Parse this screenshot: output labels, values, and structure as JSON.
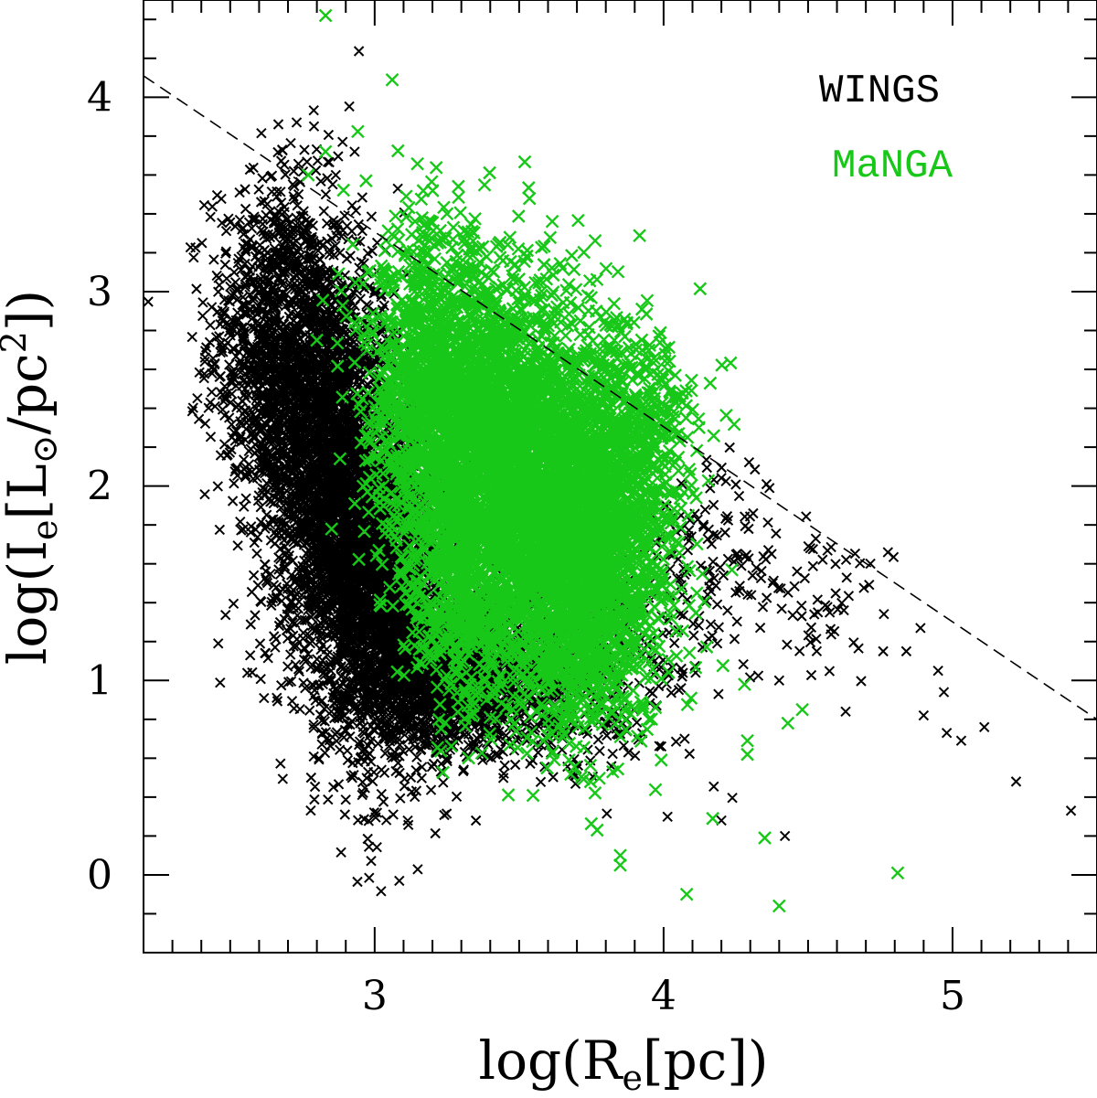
{
  "chart_data": {
    "type": "scatter",
    "title": "",
    "xlabel": "log(R_e[pc])",
    "ylabel": "log(I_e[L_sun/pc^2])",
    "xlim": [
      2.2,
      5.5
    ],
    "ylim": [
      -0.4,
      4.5
    ],
    "x_ticks": [
      3,
      4,
      5
    ],
    "x_tick_labels": [
      "3",
      "4",
      "5"
    ],
    "y_ticks": [
      0,
      1,
      2,
      3,
      4
    ],
    "y_tick_labels": [
      "0",
      "1",
      "2",
      "3",
      "4"
    ],
    "x_minor_step": 0.1,
    "y_minor_step": 0.2,
    "grid": false,
    "legend_position": "top-right",
    "series": [
      {
        "name": "WINGS",
        "color": "#000000",
        "marker": "x",
        "bulk_density": [
          {
            "x": 2.62,
            "y": 2.75,
            "sx": 0.1,
            "sy": 0.42,
            "n": 700
          },
          {
            "x": 2.78,
            "y": 2.35,
            "sx": 0.1,
            "sy": 0.55,
            "n": 1600
          },
          {
            "x": 2.92,
            "y": 1.85,
            "sx": 0.1,
            "sy": 0.55,
            "n": 1800
          },
          {
            "x": 3.05,
            "y": 1.4,
            "sx": 0.1,
            "sy": 0.4,
            "n": 1500
          },
          {
            "x": 3.25,
            "y": 1.05,
            "sx": 0.12,
            "sy": 0.2,
            "n": 1200
          },
          {
            "x": 3.5,
            "y": 1.0,
            "sx": 0.16,
            "sy": 0.22,
            "n": 500
          },
          {
            "x": 3.8,
            "y": 1.15,
            "sx": 0.18,
            "sy": 0.3,
            "n": 250
          },
          {
            "x": 4.2,
            "y": 1.65,
            "sx": 0.12,
            "sy": 0.25,
            "n": 120
          },
          {
            "x": 4.55,
            "y": 1.35,
            "sx": 0.12,
            "sy": 0.22,
            "n": 60
          }
        ],
        "outliers": [
          {
            "x": 2.73,
            "y": 3.87
          },
          {
            "x": 2.79,
            "y": 3.85
          },
          {
            "x": 2.68,
            "y": 3.73
          },
          {
            "x": 2.72,
            "y": 3.62
          },
          {
            "x": 3.08,
            "y": 3.53
          },
          {
            "x": 2.78,
            "y": 0.5
          },
          {
            "x": 3.03,
            "y": 0.74
          },
          {
            "x": 4.42,
            "y": 0.2
          },
          {
            "x": 5.22,
            "y": 0.48
          },
          {
            "x": 5.41,
            "y": 0.33
          },
          {
            "x": 4.9,
            "y": 0.82
          },
          {
            "x": 4.98,
            "y": 0.73
          },
          {
            "x": 5.03,
            "y": 0.69
          },
          {
            "x": 5.11,
            "y": 0.76
          },
          {
            "x": 4.95,
            "y": 1.05
          },
          {
            "x": 4.97,
            "y": 0.94
          },
          {
            "x": 4.84,
            "y": 1.15
          },
          {
            "x": 4.76,
            "y": 1.15
          },
          {
            "x": 4.63,
            "y": 0.84
          },
          {
            "x": 4.4,
            "y": 1.0
          },
          {
            "x": 4.2,
            "y": 0.28
          }
        ]
      },
      {
        "name": "MaNGA",
        "color": "#18c818",
        "marker": "x",
        "bulk_density": [
          {
            "x": 3.2,
            "y": 2.55,
            "sx": 0.12,
            "sy": 0.4,
            "n": 1000
          },
          {
            "x": 3.4,
            "y": 2.2,
            "sx": 0.15,
            "sy": 0.45,
            "n": 1800
          },
          {
            "x": 3.6,
            "y": 1.9,
            "sx": 0.15,
            "sy": 0.45,
            "n": 1800
          },
          {
            "x": 3.8,
            "y": 1.7,
            "sx": 0.13,
            "sy": 0.42,
            "n": 1200
          },
          {
            "x": 3.3,
            "y": 1.5,
            "sx": 0.1,
            "sy": 0.3,
            "n": 500
          },
          {
            "x": 3.65,
            "y": 1.15,
            "sx": 0.12,
            "sy": 0.25,
            "n": 350
          },
          {
            "x": 3.9,
            "y": 2.4,
            "sx": 0.12,
            "sy": 0.25,
            "n": 250
          }
        ],
        "outliers": [
          {
            "x": 2.83,
            "y": 4.42
          },
          {
            "x": 2.83,
            "y": 3.72
          },
          {
            "x": 2.77,
            "y": 3.6
          },
          {
            "x": 2.97,
            "y": 3.57
          },
          {
            "x": 3.65,
            "y": 3.12
          },
          {
            "x": 2.8,
            "y": 2.75
          },
          {
            "x": 2.88,
            "y": 2.14
          },
          {
            "x": 4.81,
            "y": 0.01
          },
          {
            "x": 4.4,
            "y": -0.16
          },
          {
            "x": 4.08,
            "y": -0.1
          },
          {
            "x": 4.35,
            "y": 0.19
          },
          {
            "x": 4.48,
            "y": 0.85
          },
          {
            "x": 4.43,
            "y": 0.78
          },
          {
            "x": 4.29,
            "y": 0.69
          },
          {
            "x": 4.29,
            "y": 0.62
          },
          {
            "x": 4.17,
            "y": 0.29
          },
          {
            "x": 3.85,
            "y": 0.05
          },
          {
            "x": 3.85,
            "y": 0.1
          },
          {
            "x": 3.77,
            "y": 0.23
          },
          {
            "x": 4.28,
            "y": 0.98
          }
        ]
      }
    ],
    "reference_line": {
      "style": "dashed",
      "color": "#000000",
      "points": [
        [
          2.2,
          4.11
        ],
        [
          5.5,
          0.8
        ]
      ]
    }
  },
  "legend": {
    "wings_label": "WINGS",
    "manga_label": "MaNGA"
  }
}
